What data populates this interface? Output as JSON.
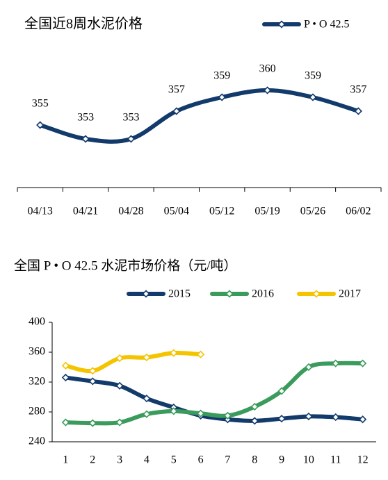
{
  "chart_data": [
    {
      "type": "line",
      "title": "全国近8周水泥价格",
      "categories": [
        "04/13",
        "04/21",
        "04/28",
        "05/04",
        "05/12",
        "05/19",
        "05/26",
        "06/02"
      ],
      "series": [
        {
          "name": "P • O 42.5",
          "color": "#123a6b",
          "values": [
            355,
            353,
            353,
            357,
            359,
            360,
            359,
            357
          ]
        }
      ],
      "ylim": [
        346,
        370
      ]
    },
    {
      "type": "line",
      "title": "全国 P • O 42.5 水泥市场价格（元/吨）",
      "categories": [
        "1",
        "2",
        "3",
        "4",
        "5",
        "6",
        "7",
        "8",
        "9",
        "10",
        "11",
        "12"
      ],
      "series": [
        {
          "name": "2015",
          "color": "#123a6b",
          "values": [
            326,
            321,
            315,
            298,
            286,
            275,
            270,
            268,
            271,
            274,
            273,
            270
          ]
        },
        {
          "name": "2016",
          "color": "#3a9b5c",
          "values": [
            266,
            265,
            266,
            277,
            281,
            278,
            275,
            287,
            308,
            340,
            345,
            345
          ]
        },
        {
          "name": "2017",
          "color": "#f5c400",
          "values": [
            342,
            335,
            352,
            353,
            359,
            357,
            null,
            null,
            null,
            null,
            null,
            null
          ]
        }
      ],
      "ylim": [
        240,
        400
      ],
      "yticks": [
        240,
        280,
        320,
        360,
        400
      ]
    }
  ]
}
